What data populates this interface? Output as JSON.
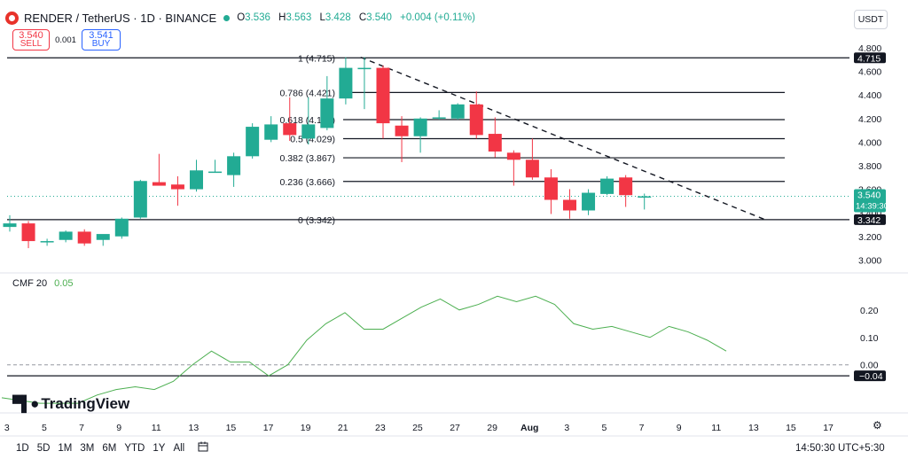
{
  "header": {
    "symbol": "RENDER / TetherUS · 1D · BINANCE",
    "open_label": "O",
    "open": "3.536",
    "high_label": "H",
    "high": "3.563",
    "low_label": "L",
    "low": "3.428",
    "close_label": "C",
    "close": "3.540",
    "change": "+0.004 (+0.11%)"
  },
  "trade": {
    "sell_price": "3.540",
    "sell_label": "SELL",
    "spread": "0.001",
    "buy_price": "3.541",
    "buy_label": "BUY"
  },
  "currency_button": "USDT",
  "cmf": {
    "label": "CMF 20",
    "value": "0.05"
  },
  "branding": "TradingView",
  "timeframes": [
    "1D",
    "5D",
    "1M",
    "3M",
    "6M",
    "YTD",
    "1Y",
    "All"
  ],
  "clock": "14:50:30 UTC+5:30",
  "colors": {
    "up": "#22ab94",
    "down": "#f23645",
    "cmf": "#4caf50",
    "axis_label_bg": "#131722"
  },
  "icons": [
    "render-logo-icon",
    "status-dot-icon",
    "calendar-icon",
    "gear-icon"
  ],
  "chart_data": [
    {
      "type": "candlestick",
      "title": "RENDER / TetherUS · 1D · BINANCE",
      "x_ticks": [
        "3",
        "5",
        "7",
        "9",
        "11",
        "13",
        "15",
        "17",
        "19",
        "21",
        "23",
        "25",
        "27",
        "29",
        "Aug",
        "3",
        "5",
        "7",
        "9",
        "11",
        "13",
        "15",
        "17"
      ],
      "y_ticks": [
        "4.800",
        "4.600",
        "4.400",
        "4.200",
        "4.000",
        "3.800",
        "3.600",
        "3.400",
        "3.200",
        "3.000"
      ],
      "ylim": [
        2.95,
        4.86
      ],
      "candles": [
        {
          "o": 3.28,
          "h": 3.38,
          "l": 3.24,
          "c": 3.31
        },
        {
          "o": 3.31,
          "h": 3.33,
          "l": 3.1,
          "c": 3.16
        },
        {
          "o": 3.15,
          "h": 3.18,
          "l": 3.12,
          "c": 3.16
        },
        {
          "o": 3.17,
          "h": 3.25,
          "l": 3.15,
          "c": 3.24
        },
        {
          "o": 3.24,
          "h": 3.26,
          "l": 3.12,
          "c": 3.14
        },
        {
          "o": 3.17,
          "h": 3.21,
          "l": 3.12,
          "c": 3.22
        },
        {
          "o": 3.2,
          "h": 3.36,
          "l": 3.18,
          "c": 3.35
        },
        {
          "o": 3.36,
          "h": 3.68,
          "l": 3.35,
          "c": 3.67
        },
        {
          "o": 3.66,
          "h": 3.9,
          "l": 3.64,
          "c": 3.63
        },
        {
          "o": 3.64,
          "h": 3.71,
          "l": 3.46,
          "c": 3.6
        },
        {
          "o": 3.6,
          "h": 3.85,
          "l": 3.58,
          "c": 3.76
        },
        {
          "o": 3.74,
          "h": 3.85,
          "l": 3.74,
          "c": 3.75
        },
        {
          "o": 3.72,
          "h": 3.91,
          "l": 3.62,
          "c": 3.88
        },
        {
          "o": 3.88,
          "h": 4.16,
          "l": 3.86,
          "c": 4.13
        },
        {
          "o": 4.02,
          "h": 4.22,
          "l": 4.0,
          "c": 4.15
        },
        {
          "o": 4.16,
          "h": 4.38,
          "l": 4.01,
          "c": 4.06
        },
        {
          "o": 4.03,
          "h": 4.38,
          "l": 3.98,
          "c": 4.15
        },
        {
          "o": 4.12,
          "h": 4.56,
          "l": 4.1,
          "c": 4.37
        },
        {
          "o": 4.37,
          "h": 4.72,
          "l": 4.32,
          "c": 4.63
        },
        {
          "o": 4.62,
          "h": 4.72,
          "l": 4.28,
          "c": 4.63
        },
        {
          "o": 4.63,
          "h": 4.65,
          "l": 4.03,
          "c": 4.16
        },
        {
          "o": 4.14,
          "h": 4.22,
          "l": 3.83,
          "c": 4.05
        },
        {
          "o": 4.05,
          "h": 4.21,
          "l": 3.91,
          "c": 4.2
        },
        {
          "o": 4.2,
          "h": 4.27,
          "l": 4.19,
          "c": 4.21
        },
        {
          "o": 4.2,
          "h": 4.33,
          "l": 4.19,
          "c": 4.32
        },
        {
          "o": 4.32,
          "h": 4.43,
          "l": 4.03,
          "c": 4.06
        },
        {
          "o": 4.07,
          "h": 4.21,
          "l": 3.87,
          "c": 3.92
        },
        {
          "o": 3.91,
          "h": 3.93,
          "l": 3.63,
          "c": 3.85
        },
        {
          "o": 3.85,
          "h": 4.03,
          "l": 3.68,
          "c": 3.7
        },
        {
          "o": 3.7,
          "h": 3.77,
          "l": 3.39,
          "c": 3.51
        },
        {
          "o": 3.51,
          "h": 3.6,
          "l": 3.35,
          "c": 3.42
        },
        {
          "o": 3.42,
          "h": 3.6,
          "l": 3.38,
          "c": 3.57
        },
        {
          "o": 3.56,
          "h": 3.71,
          "l": 3.55,
          "c": 3.69
        },
        {
          "o": 3.7,
          "h": 3.72,
          "l": 3.45,
          "c": 3.55
        },
        {
          "o": 3.536,
          "h": 3.563,
          "l": 3.428,
          "c": 3.54
        }
      ],
      "fib_levels": [
        {
          "ratio": "1",
          "value": 4.715,
          "label": "1 (4.715)"
        },
        {
          "ratio": "0.786",
          "value": 4.421,
          "label": "0.786 (4.421)"
        },
        {
          "ratio": "0.618",
          "value": 4.191,
          "label": "0.618 (4.191)"
        },
        {
          "ratio": "0.5",
          "value": 4.029,
          "label": "0.5 (4.029)"
        },
        {
          "ratio": "0.382",
          "value": 3.867,
          "label": "0.382 (3.867)"
        },
        {
          "ratio": "0.236",
          "value": 3.666,
          "label": "0.236 (3.666)"
        },
        {
          "ratio": "0",
          "value": 3.342,
          "label": "0 (3.342)"
        }
      ],
      "trendline": {
        "from": {
          "bar": 18.8,
          "value": 4.72
        },
        "to": {
          "bar": 40.5,
          "value": 3.34
        }
      },
      "axis_labels": [
        {
          "value": 4.715,
          "text": "4.715",
          "bg": "#131722"
        },
        {
          "value": 3.54,
          "text": "3.540",
          "sub": "14:39:30",
          "bg": "#22ab94"
        },
        {
          "value": 3.342,
          "text": "3.342",
          "bg": "#131722"
        }
      ]
    },
    {
      "type": "line",
      "title": "CMF 20",
      "y_ticks": [
        "0.20",
        "0.10",
        "0.00"
      ],
      "ylim": [
        -0.13,
        0.28
      ],
      "series": [
        {
          "name": "CMF 20",
          "values": [
            -0.12,
            -0.13,
            -0.14,
            -0.14,
            -0.14,
            -0.11,
            -0.09,
            -0.08,
            -0.09,
            -0.06,
            0.0,
            0.05,
            0.01,
            0.01,
            -0.04,
            0.0,
            0.09,
            0.15,
            0.19,
            0.13,
            0.13,
            0.17,
            0.21,
            0.24,
            0.2,
            0.22,
            0.25,
            0.23,
            0.25,
            0.22,
            0.15,
            0.13,
            0.14,
            0.12,
            0.1,
            0.14,
            0.12,
            0.09,
            0.05
          ]
        }
      ],
      "zero_line": 0.0,
      "horizontal_level": -0.04,
      "axis_labels": [
        {
          "value": -0.04,
          "text": "−0.04",
          "bg": "#131722"
        }
      ]
    }
  ]
}
